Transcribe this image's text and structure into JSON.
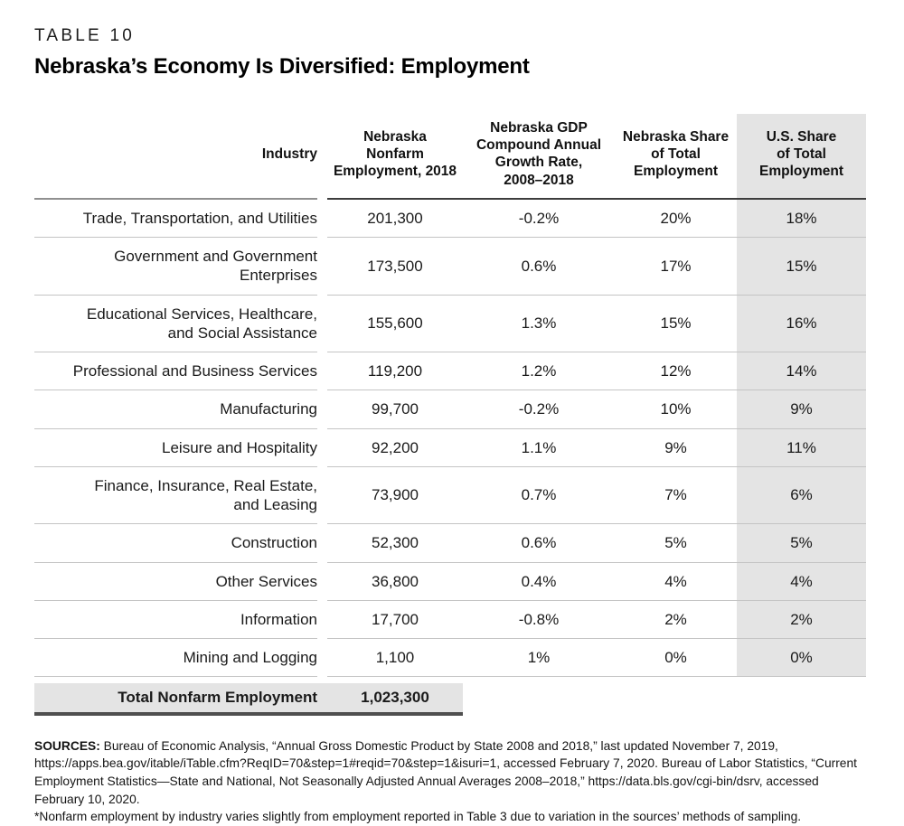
{
  "header": {
    "kicker": "TABLE 10",
    "title": "Nebraska’s Economy Is Diversified: Employment"
  },
  "table": {
    "columns": {
      "industry": "Industry",
      "employment": "Nebraska\nNonfarm\nEmployment, 2018",
      "cagr": "Nebraska GDP\nCompound Annual\nGrowth Rate,\n2008–2018",
      "ne_share": "Nebraska Share\nof Total\nEmployment",
      "us_share": "U.S. Share\nof Total\nEmployment"
    },
    "rows": [
      {
        "industry": "Trade, Transportation, and Utilities",
        "employment": "201,300",
        "cagr": "-0.2%",
        "ne_share": "20%",
        "us_share": "18%"
      },
      {
        "industry": "Government and Government\nEnterprises",
        "employment": "173,500",
        "cagr": "0.6%",
        "ne_share": "17%",
        "us_share": "15%"
      },
      {
        "industry": "Educational Services, Healthcare,\nand Social Assistance",
        "employment": "155,600",
        "cagr": "1.3%",
        "ne_share": "15%",
        "us_share": "16%"
      },
      {
        "industry": "Professional and Business Services",
        "employment": "119,200",
        "cagr": "1.2%",
        "ne_share": "12%",
        "us_share": "14%"
      },
      {
        "industry": "Manufacturing",
        "employment": "99,700",
        "cagr": "-0.2%",
        "ne_share": "10%",
        "us_share": "9%"
      },
      {
        "industry": "Leisure and Hospitality",
        "employment": "92,200",
        "cagr": "1.1%",
        "ne_share": "9%",
        "us_share": "11%"
      },
      {
        "industry": "Finance, Insurance, Real Estate,\nand Leasing",
        "employment": "73,900",
        "cagr": "0.7%",
        "ne_share": "7%",
        "us_share": "6%"
      },
      {
        "industry": "Construction",
        "employment": "52,300",
        "cagr": "0.6%",
        "ne_share": "5%",
        "us_share": "5%"
      },
      {
        "industry": "Other Services",
        "employment": "36,800",
        "cagr": "0.4%",
        "ne_share": "4%",
        "us_share": "4%"
      },
      {
        "industry": "Information",
        "employment": "17,700",
        "cagr": "-0.8%",
        "ne_share": "2%",
        "us_share": "2%"
      },
      {
        "industry": "Mining and Logging",
        "employment": "1,100",
        "cagr": "1%",
        "ne_share": "0%",
        "us_share": "0%"
      }
    ],
    "total": {
      "label": "Total Nonfarm Employment",
      "employment": "1,023,300"
    }
  },
  "footnote": {
    "sources_label": "SOURCES:",
    "sources_text": " Bureau of Economic Analysis, “Annual Gross Domestic Product by State 2008 and 2018,” last updated November 7, 2019, https://apps.bea.gov/itable/iTable.cfm?ReqID=70&step=1#reqid=70&step=1&isuri=1, accessed February 7, 2020. Bureau of Labor Statistics, “Current Employment Statistics—State and National, Not Seasonally Adjusted Annual Averages 2008–2018,” https://data.bls.gov/cgi-bin/dsrv, accessed February 10, 2020.",
    "note": "*Nonfarm employment by industry varies slightly from employment reported in Table 3 due to variation in the sources’ methods of sampling."
  },
  "colors": {
    "column_shade": "#e4e4e4",
    "row_rule": "#c4c4c4",
    "header_rule_dark": "#3d3d3d",
    "header_rule_light": "#909090",
    "total_rule": "#4f4f4f"
  }
}
